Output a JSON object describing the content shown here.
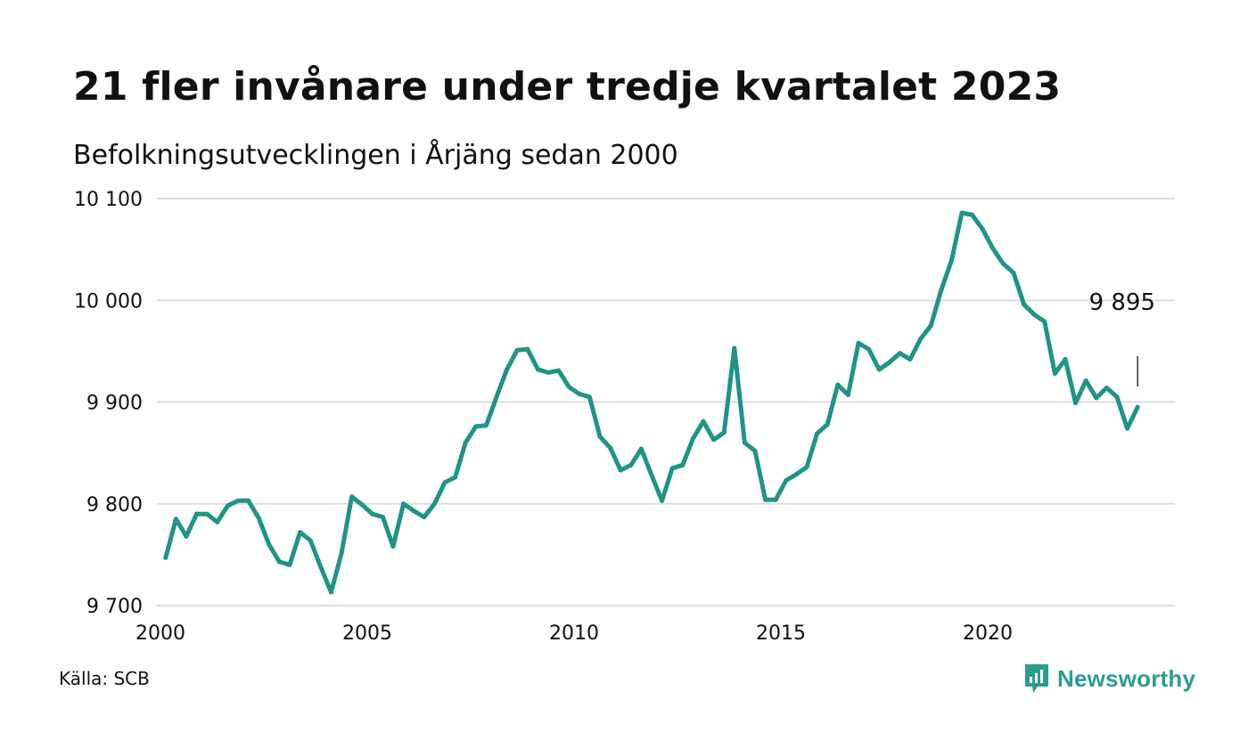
{
  "header": {
    "title": "21 fler invånare under tredje kvartalet 2023",
    "subtitle": "Befolkningsutvecklingen i Årjäng sedan 2000"
  },
  "footer": {
    "source": "Källa: SCB",
    "brand": "Newsworthy",
    "brand_icon": "bar-chart-speech-icon"
  },
  "colors": {
    "line": "#1f9486",
    "grid": "#dddddd",
    "text": "#111111",
    "brand": "#2a9d8f"
  },
  "chart_data": {
    "type": "line",
    "title": "21 fler invånare under tredje kvartalet 2023",
    "subtitle": "Befolkningsutvecklingen i Årjäng sedan 2000",
    "x_ticks": [
      2000,
      2005,
      2010,
      2015,
      2020
    ],
    "x_tick_labels": [
      "2000",
      "2005",
      "2010",
      "2015",
      "2020"
    ],
    "y_ticks": [
      9700,
      9800,
      9900,
      10000,
      10100
    ],
    "y_tick_labels": [
      "9 700",
      "9 800",
      "9 900",
      "10 000",
      "10 100"
    ],
    "xlim": [
      2000,
      2024
    ],
    "ylim": [
      9700,
      10100
    ],
    "grid": "horizontal",
    "x": [
      2000.125,
      2000.375,
      2000.625,
      2000.875,
      2001.125,
      2001.375,
      2001.625,
      2001.875,
      2002.125,
      2002.375,
      2002.625,
      2002.875,
      2003.125,
      2003.375,
      2003.625,
      2003.875,
      2004.125,
      2004.375,
      2004.625,
      2004.875,
      2005.125,
      2005.375,
      2005.625,
      2005.875,
      2006.125,
      2006.375,
      2006.625,
      2006.875,
      2007.125,
      2007.375,
      2007.625,
      2007.875,
      2008.125,
      2008.375,
      2008.625,
      2008.875,
      2009.125,
      2009.375,
      2009.625,
      2009.875,
      2010.125,
      2010.375,
      2010.625,
      2010.875,
      2011.125,
      2011.375,
      2011.625,
      2011.875,
      2012.125,
      2012.375,
      2012.625,
      2012.875,
      2013.125,
      2013.375,
      2013.625,
      2013.875,
      2014.125,
      2014.375,
      2014.625,
      2014.875,
      2015.125,
      2015.375,
      2015.625,
      2015.875,
      2016.125,
      2016.375,
      2016.625,
      2016.875,
      2017.125,
      2017.375,
      2017.625,
      2017.875,
      2018.125,
      2018.375,
      2018.625,
      2018.875,
      2019.125,
      2019.375,
      2019.625,
      2019.875,
      2020.125,
      2020.375,
      2020.625,
      2020.875,
      2021.125,
      2021.375,
      2021.625,
      2021.875,
      2022.125,
      2022.375,
      2022.625,
      2022.875,
      2023.125,
      2023.375,
      2023.625
    ],
    "series": [
      {
        "values": [
          9747,
          9785,
          9768,
          9790,
          9790,
          9782,
          9798,
          9803,
          9803,
          9786,
          9760,
          9743,
          9740,
          9772,
          9764,
          9738,
          9713,
          9751,
          9807,
          9799,
          9790,
          9787,
          9758,
          9800,
          9793,
          9787,
          9800,
          9821,
          9826,
          9860,
          9876,
          9877,
          9905,
          9932,
          9951,
          9952,
          9932,
          9929,
          9931,
          9915,
          9908,
          9905,
          9866,
          9855,
          9833,
          9838,
          9854,
          9828,
          9803,
          9835,
          9838,
          9864,
          9881,
          9863,
          9870,
          9953,
          9860,
          9852,
          9804,
          9804,
          9823,
          9829,
          9836,
          9869,
          9878,
          9917,
          9907,
          9958,
          9952,
          9932,
          9939,
          9948,
          9942,
          9962,
          9975,
          10010,
          10039,
          10086,
          10084,
          10070,
          10051,
          10036,
          10027,
          9996,
          9986,
          9979,
          9928,
          9942,
          9899,
          9921,
          9904,
          9914,
          9905,
          9874,
          9895
        ]
      }
    ],
    "annotation": {
      "label": "9 895",
      "x": 2023.625,
      "y": 9895
    }
  }
}
